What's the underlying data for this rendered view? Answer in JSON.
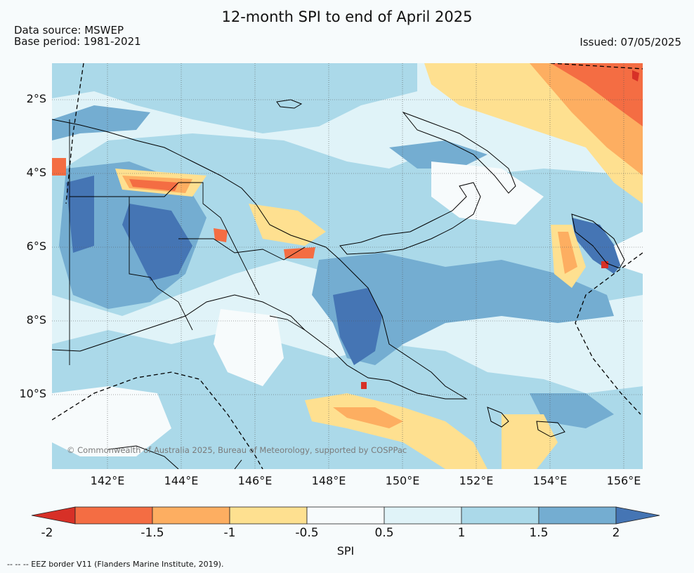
{
  "title": "12-month SPI to end of April 2025",
  "data_source": "Data source: MSWEP",
  "base_period": "Base period: 1981-2021",
  "issued": "Issued: 07/05/2025",
  "credit": "© Commonwealth of Australia 2025, Bureau of Meteorology, supported by COSPPac",
  "lat_labels": [
    "2°S",
    "4°S",
    "6°S",
    "8°S",
    "10°S"
  ],
  "lon_labels": [
    "142°E",
    "144°E",
    "146°E",
    "148°E",
    "150°E",
    "152°E",
    "154°E",
    "156°E"
  ],
  "colorbar": {
    "ticks": [
      "-2",
      "-1.5",
      "-1",
      "-0.5",
      "0.5",
      "1",
      "1.5",
      "2"
    ],
    "label": "SPI",
    "colors": [
      "#d73027",
      "#f46d43",
      "#fdae61",
      "#fee090",
      "#f7fbfc",
      "#e0f3f8",
      "#abd9e9",
      "#74add1",
      "#4575b4"
    ]
  },
  "eez_note": "-- -- -- EEZ border V11 (Flanders Marine Institute, 2019)."
}
